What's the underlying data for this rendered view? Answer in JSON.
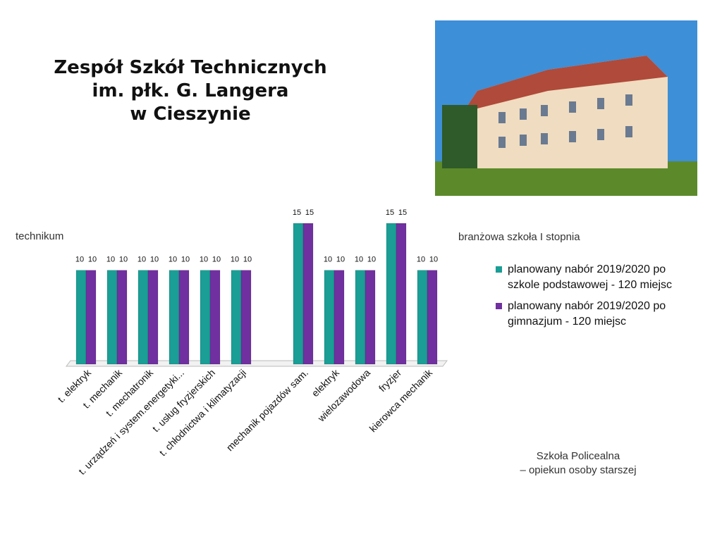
{
  "slide": {
    "title": [
      "Zespół Szkół Technicznych",
      "im. płk. G. Langera",
      "w Cieszynie"
    ],
    "note": [
      "Szkoła Policealna",
      "– opiekun osoby starszej"
    ]
  },
  "chart_data": {
    "type": "bar",
    "annotations": [
      "technikum",
      "branżowa szkoła I stopnia"
    ],
    "categories": [
      "t. elektryk",
      "t. mechanik",
      "t. mechatronik",
      "t. urządzeń i system.energetyki...",
      "t. usług fryzjerskich",
      "t. chłodnictwa i klimatyzacji",
      null,
      "mechanik pojazdów sam.",
      "elektryk",
      "wielozawodowa",
      "fryzjer",
      "kierowca mechanik"
    ],
    "series": [
      {
        "name": "planowany nabór 2019/2020 po szkole podstawowej - 120 miejsc",
        "color": "#1a9e96",
        "values": [
          10,
          10,
          10,
          10,
          10,
          10,
          null,
          15,
          10,
          10,
          15,
          10
        ]
      },
      {
        "name": "planowany nabór 2019/2020 po gimnazjum - 120 miejsc",
        "color": "#7030a0",
        "values": [
          10,
          10,
          10,
          10,
          10,
          10,
          null,
          15,
          10,
          10,
          15,
          10
        ]
      }
    ],
    "ylim": [
      0,
      15
    ],
    "legend": "right"
  }
}
